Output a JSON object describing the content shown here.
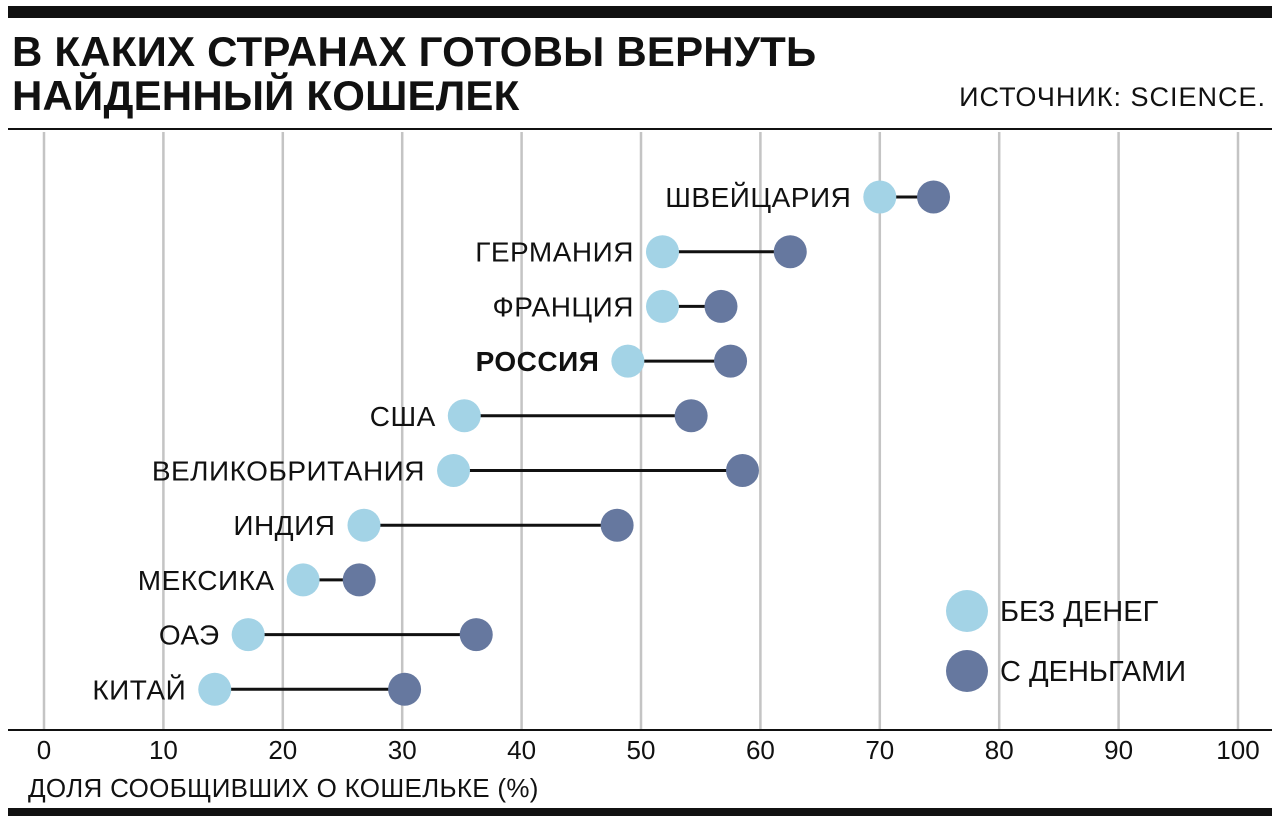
{
  "header": {
    "title_line1": "В КАКИХ СТРАНАХ ГОТОВЫ ВЕРНУТЬ",
    "title_line2": "НАЙДЕННЫЙ КОШЕЛЕК",
    "source": "ИСТОЧНИК: SCIENCE."
  },
  "colors": {
    "no_money": "#a3d3e6",
    "with_money": "#66789f",
    "connector": "#111111",
    "grid": "#c4c4c4"
  },
  "chart_data": {
    "type": "dumbbell",
    "xlabel": "ДОЛЯ СООБЩИВШИХ О КОШЕЛЬКЕ (%)",
    "xlim": [
      0,
      100
    ],
    "xticks": [
      0,
      10,
      20,
      30,
      40,
      50,
      60,
      70,
      80,
      90,
      100
    ],
    "grid": true,
    "legend_position": "bottom-right",
    "series": [
      {
        "name": "БЕЗ ДЕНЕГ",
        "key": "no_money"
      },
      {
        "name": "С ДЕНЬГАМИ",
        "key": "with_money"
      }
    ],
    "rows": [
      {
        "country": "ШВЕЙЦАРИЯ",
        "no_money": 70.0,
        "with_money": 74.5,
        "bold": false
      },
      {
        "country": "ГЕРМАНИЯ",
        "no_money": 51.8,
        "with_money": 62.5,
        "bold": false
      },
      {
        "country": "ФРАНЦИЯ",
        "no_money": 51.8,
        "with_money": 56.7,
        "bold": false
      },
      {
        "country": "РОССИЯ",
        "no_money": 48.9,
        "with_money": 57.5,
        "bold": true
      },
      {
        "country": "США",
        "no_money": 35.2,
        "with_money": 54.2,
        "bold": false
      },
      {
        "country": "ВЕЛИКОБРИТАНИЯ",
        "no_money": 34.3,
        "with_money": 58.5,
        "bold": false
      },
      {
        "country": "ИНДИЯ",
        "no_money": 26.8,
        "with_money": 48.0,
        "bold": false
      },
      {
        "country": "МЕКСИКА",
        "no_money": 21.7,
        "with_money": 26.4,
        "bold": false
      },
      {
        "country": "ОАЭ",
        "no_money": 17.1,
        "with_money": 36.2,
        "bold": false
      },
      {
        "country": "КИТАЙ",
        "no_money": 14.3,
        "with_money": 30.2,
        "bold": false
      }
    ]
  }
}
